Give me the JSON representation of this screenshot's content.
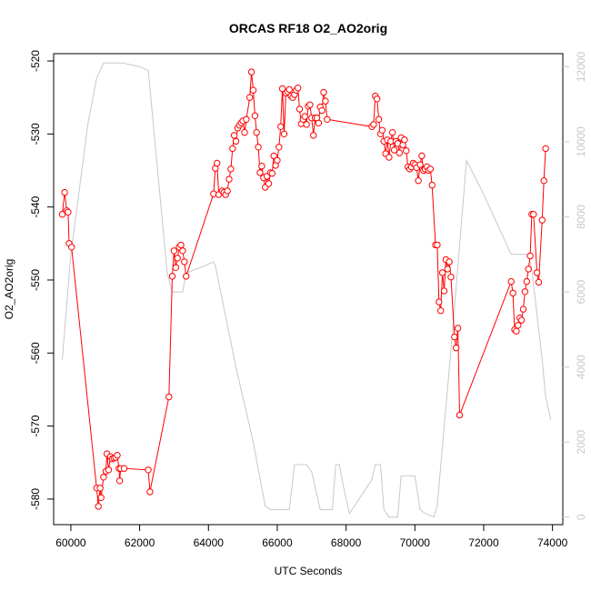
{
  "chart_data": {
    "type": "line",
    "title": "ORCAS RF18 O2_AO2orig",
    "xlabel": "UTC Seconds",
    "ylabel": "O2_AO2orig",
    "xlim": [
      59500,
      74300
    ],
    "ylim": [
      -583.5,
      -519
    ],
    "y2lim": [
      -200,
      12350
    ],
    "x_ticks": [
      60000,
      62000,
      64000,
      66000,
      68000,
      70000,
      72000,
      74000
    ],
    "y_ticks": [
      -520,
      -530,
      -540,
      -550,
      -560,
      -570,
      -580
    ],
    "y2_ticks": [
      0,
      2000,
      4000,
      6000,
      8000,
      10000,
      12000
    ],
    "grid": false,
    "colors": {
      "main": "#ff0000",
      "altitude": "#c8c8c8",
      "axis": "#000000",
      "axis2": "#c8c8c8"
    },
    "series": [
      {
        "axis": "left",
        "style": "line+circle",
        "points": [
          [
            59750,
            -541
          ],
          [
            59820,
            -538
          ],
          [
            59880,
            -540.5
          ],
          [
            59920,
            -540.7
          ],
          [
            59950,
            -545
          ],
          [
            60020,
            -545.5
          ],
          [
            60750,
            -578.5
          ],
          [
            60800,
            -581
          ],
          [
            60850,
            -578.5
          ],
          [
            60880,
            -579.8
          ],
          [
            60950,
            -577
          ],
          [
            61020,
            -576.2
          ],
          [
            61050,
            -573.8
          ],
          [
            61100,
            -576
          ],
          [
            61150,
            -574.2
          ],
          [
            61200,
            -574.5
          ],
          [
            61250,
            -574.4
          ],
          [
            61300,
            -574.3
          ],
          [
            61350,
            -574
          ],
          [
            61400,
            -575.8
          ],
          [
            61420,
            -577.5
          ],
          [
            61450,
            -575.8
          ],
          [
            61550,
            -575.8
          ],
          [
            62250,
            -576
          ],
          [
            62300,
            -579
          ],
          [
            62850,
            -566
          ],
          [
            62950,
            -549.5
          ],
          [
            63000,
            -546
          ],
          [
            63050,
            -548.3
          ],
          [
            63100,
            -547
          ],
          [
            63150,
            -545.5
          ],
          [
            63200,
            -545.2
          ],
          [
            63250,
            -546
          ],
          [
            63300,
            -547.5
          ],
          [
            63350,
            -549.5
          ],
          [
            64150,
            -538.2
          ],
          [
            64200,
            -534.7
          ],
          [
            64250,
            -534
          ],
          [
            64300,
            -538.3
          ],
          [
            64400,
            -537.8
          ],
          [
            64450,
            -538
          ],
          [
            64500,
            -538.3
          ],
          [
            64550,
            -537.8
          ],
          [
            64600,
            -536.2
          ],
          [
            64650,
            -534.8
          ],
          [
            64700,
            -532
          ],
          [
            64750,
            -530.2
          ],
          [
            64800,
            -531
          ],
          [
            64850,
            -529.2
          ],
          [
            64900,
            -528.8
          ],
          [
            64950,
            -528.5
          ],
          [
            65000,
            -528.2
          ],
          [
            65050,
            -529.8
          ],
          [
            65100,
            -528
          ],
          [
            65200,
            -525
          ],
          [
            65250,
            -521.5
          ],
          [
            65300,
            -524
          ],
          [
            65350,
            -527.5
          ],
          [
            65400,
            -529.8
          ],
          [
            65450,
            -531.8
          ],
          [
            65500,
            -535.3
          ],
          [
            65550,
            -534.4
          ],
          [
            65600,
            -536
          ],
          [
            65650,
            -537.3
          ],
          [
            65700,
            -535.8
          ],
          [
            65750,
            -536.8
          ],
          [
            65800,
            -535.3
          ],
          [
            65850,
            -535.4
          ],
          [
            65900,
            -533
          ],
          [
            65950,
            -534.3
          ],
          [
            66000,
            -533.6
          ],
          [
            66050,
            -531.8
          ],
          [
            66100,
            -529
          ],
          [
            66150,
            -523.8
          ],
          [
            66200,
            -530
          ],
          [
            66250,
            -524.4
          ],
          [
            66300,
            -524.2
          ],
          [
            66350,
            -523.9
          ],
          [
            66400,
            -524.8
          ],
          [
            66450,
            -525
          ],
          [
            66500,
            -524.6
          ],
          [
            66550,
            -524
          ],
          [
            66600,
            -523.7
          ],
          [
            66650,
            -526.6
          ],
          [
            66700,
            -528.6
          ],
          [
            66750,
            -528
          ],
          [
            66800,
            -527.6
          ],
          [
            66850,
            -528.7
          ],
          [
            66900,
            -526.2
          ],
          [
            66950,
            -526
          ],
          [
            67000,
            -527.8
          ],
          [
            67050,
            -530.2
          ],
          [
            67100,
            -527.8
          ],
          [
            67150,
            -527.8
          ],
          [
            67200,
            -528.5
          ],
          [
            67250,
            -526.3
          ],
          [
            67300,
            -526.8
          ],
          [
            67350,
            -524.3
          ],
          [
            67400,
            -525.5
          ],
          [
            67450,
            -528
          ],
          [
            68750,
            -529
          ],
          [
            68800,
            -528.7
          ],
          [
            68850,
            -524.8
          ],
          [
            68900,
            -525.2
          ],
          [
            68950,
            -528
          ],
          [
            69000,
            -530
          ],
          [
            69050,
            -529.5
          ],
          [
            69100,
            -531
          ],
          [
            69150,
            -532.7
          ],
          [
            69200,
            -530.8
          ],
          [
            69250,
            -533.2
          ],
          [
            69300,
            -531
          ],
          [
            69350,
            -529.8
          ],
          [
            69400,
            -532.2
          ],
          [
            69450,
            -531
          ],
          [
            69500,
            -531.3
          ],
          [
            69550,
            -532.6
          ],
          [
            69600,
            -530.5
          ],
          [
            69650,
            -531.5
          ],
          [
            69700,
            -530.8
          ],
          [
            69750,
            -532.3
          ],
          [
            69800,
            -534.5
          ],
          [
            69850,
            -534.8
          ],
          [
            69900,
            -534.5
          ],
          [
            69950,
            -534
          ],
          [
            70000,
            -534.2
          ],
          [
            70050,
            -534.6
          ],
          [
            70100,
            -536.4
          ],
          [
            70150,
            -534.2
          ],
          [
            70200,
            -533
          ],
          [
            70250,
            -535
          ],
          [
            70300,
            -534.8
          ],
          [
            70350,
            -534.5
          ],
          [
            70400,
            -535
          ],
          [
            70450,
            -534.8
          ],
          [
            70500,
            -537
          ],
          [
            70600,
            -545.2
          ],
          [
            70650,
            -545.2
          ],
          [
            70700,
            -553
          ],
          [
            70750,
            -554.2
          ],
          [
            70800,
            -549
          ],
          [
            70850,
            -551.5
          ],
          [
            70900,
            -547.2
          ],
          [
            70950,
            -548.5
          ],
          [
            71000,
            -547.5
          ],
          [
            71050,
            -549.6
          ],
          [
            71150,
            -557.8
          ],
          [
            71200,
            -559.3
          ],
          [
            71250,
            -556.6
          ],
          [
            71300,
            -568.5
          ],
          [
            72800,
            -550.2
          ],
          [
            72850,
            -551.8
          ],
          [
            72900,
            -556.8
          ],
          [
            72950,
            -557
          ],
          [
            73000,
            -556.2
          ],
          [
            73050,
            -555.2
          ],
          [
            73100,
            -555.5
          ],
          [
            73150,
            -554
          ],
          [
            73200,
            -551.6
          ],
          [
            73250,
            -550.2
          ],
          [
            73300,
            -548.5
          ],
          [
            73350,
            -546.7
          ],
          [
            73400,
            -541
          ],
          [
            73450,
            -541
          ],
          [
            73550,
            -549
          ],
          [
            73600,
            -550.3
          ],
          [
            73700,
            -541.8
          ],
          [
            73750,
            -536.4
          ],
          [
            73800,
            -532
          ]
        ]
      },
      {
        "axis": "right",
        "style": "line",
        "points": [
          [
            59750,
            4200
          ],
          [
            60000,
            7000
          ],
          [
            60500,
            10500
          ],
          [
            60750,
            11700
          ],
          [
            60950,
            12100
          ],
          [
            61500,
            12100
          ],
          [
            62000,
            12000
          ],
          [
            62250,
            11900
          ],
          [
            62800,
            6500
          ],
          [
            62950,
            6000
          ],
          [
            63250,
            6000
          ],
          [
            63350,
            6500
          ],
          [
            64150,
            6800
          ],
          [
            64200,
            6700
          ],
          [
            64800,
            4000
          ],
          [
            65300,
            2000
          ],
          [
            65650,
            300
          ],
          [
            65800,
            200
          ],
          [
            66350,
            200
          ],
          [
            66500,
            1400
          ],
          [
            66850,
            1400
          ],
          [
            67000,
            1200
          ],
          [
            67250,
            200
          ],
          [
            67600,
            200
          ],
          [
            67700,
            1400
          ],
          [
            67800,
            1400
          ],
          [
            67950,
            700
          ],
          [
            68100,
            100
          ],
          [
            68750,
            1000
          ],
          [
            68850,
            1400
          ],
          [
            69000,
            1400
          ],
          [
            69100,
            200
          ],
          [
            69250,
            0
          ],
          [
            69500,
            0
          ],
          [
            69600,
            1100
          ],
          [
            69650,
            1100
          ],
          [
            70000,
            1100
          ],
          [
            70150,
            200
          ],
          [
            70300,
            100
          ],
          [
            70550,
            0
          ],
          [
            70650,
            300
          ],
          [
            71100,
            5000
          ],
          [
            71500,
            9500
          ],
          [
            72000,
            8600
          ],
          [
            72500,
            7600
          ],
          [
            72800,
            7000
          ],
          [
            73300,
            7000
          ],
          [
            73400,
            6600
          ],
          [
            73700,
            4200
          ],
          [
            73800,
            3200
          ],
          [
            73950,
            2600
          ]
        ]
      }
    ]
  }
}
